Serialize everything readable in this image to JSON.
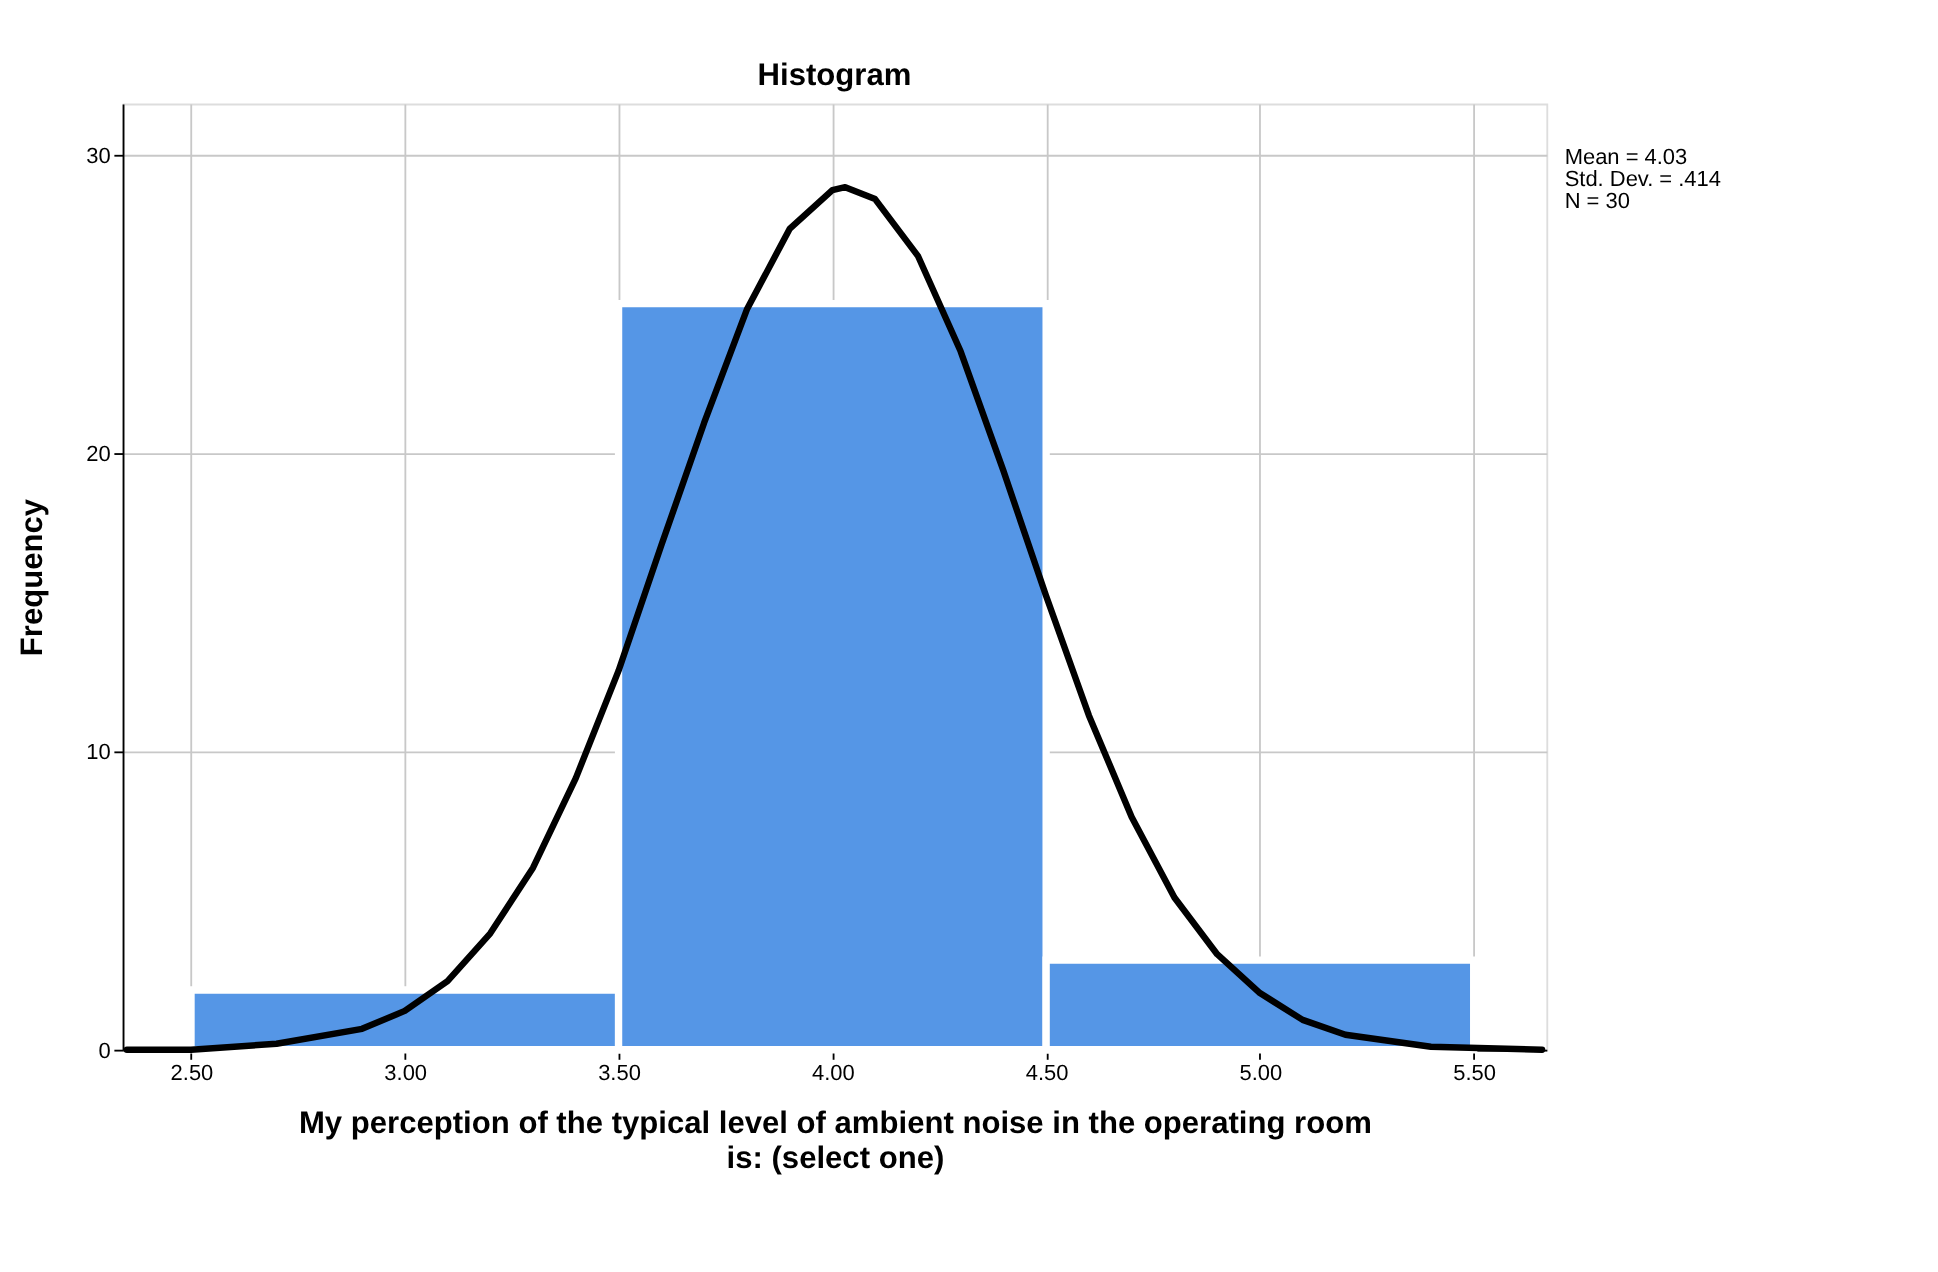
{
  "chart_data": {
    "type": "histogram",
    "title": "Histogram",
    "xlabel": "My perception of the typical level of ambient noise in the operating room\nis: (select one)",
    "ylabel": "Frequency",
    "bins": [
      2.5,
      3.5,
      4.5,
      5.5
    ],
    "values": [
      2,
      25,
      3
    ],
    "color": "#5596e6",
    "series": [
      {
        "type": "line",
        "color": "#000000",
        "x": [
          2.35,
          2.5,
          2.7,
          2.9,
          3.0,
          3.1,
          3.2,
          3.3,
          3.4,
          3.5,
          3.6,
          3.7,
          3.8,
          3.9,
          4.0,
          4.03,
          4.1,
          4.2,
          4.3,
          4.4,
          4.5,
          4.6,
          4.7,
          4.8,
          4.9,
          5.0,
          5.1,
          5.2,
          5.4,
          5.66
        ],
        "values": [
          0.0,
          0.0,
          0.2,
          0.7,
          1.3,
          2.3,
          3.9,
          6.1,
          9.1,
          12.7,
          16.9,
          21.0,
          24.8,
          27.5,
          28.8,
          28.9,
          28.5,
          26.6,
          23.4,
          19.4,
          15.2,
          11.2,
          7.8,
          5.1,
          3.2,
          1.9,
          1.0,
          0.5,
          0.1,
          0.0
        ]
      }
    ],
    "xlim": [
      2.34,
      5.67
    ],
    "xticks": [
      {
        "value": 2.5,
        "label": "2.50"
      },
      {
        "value": 3.0,
        "label": "3.00"
      },
      {
        "value": 3.5,
        "label": "3.50"
      },
      {
        "value": 4.0,
        "label": "4.00"
      },
      {
        "value": 4.5,
        "label": "4.50"
      },
      {
        "value": 5.0,
        "label": "5.00"
      },
      {
        "value": 5.5,
        "label": "5.50"
      }
    ],
    "ylim": [
      0,
      31.7
    ],
    "yticks": [
      0,
      10,
      20,
      30
    ],
    "grid": true,
    "annotations": [
      "Mean = 4.03",
      "Std. Dev. = .414",
      "N = 30"
    ]
  }
}
